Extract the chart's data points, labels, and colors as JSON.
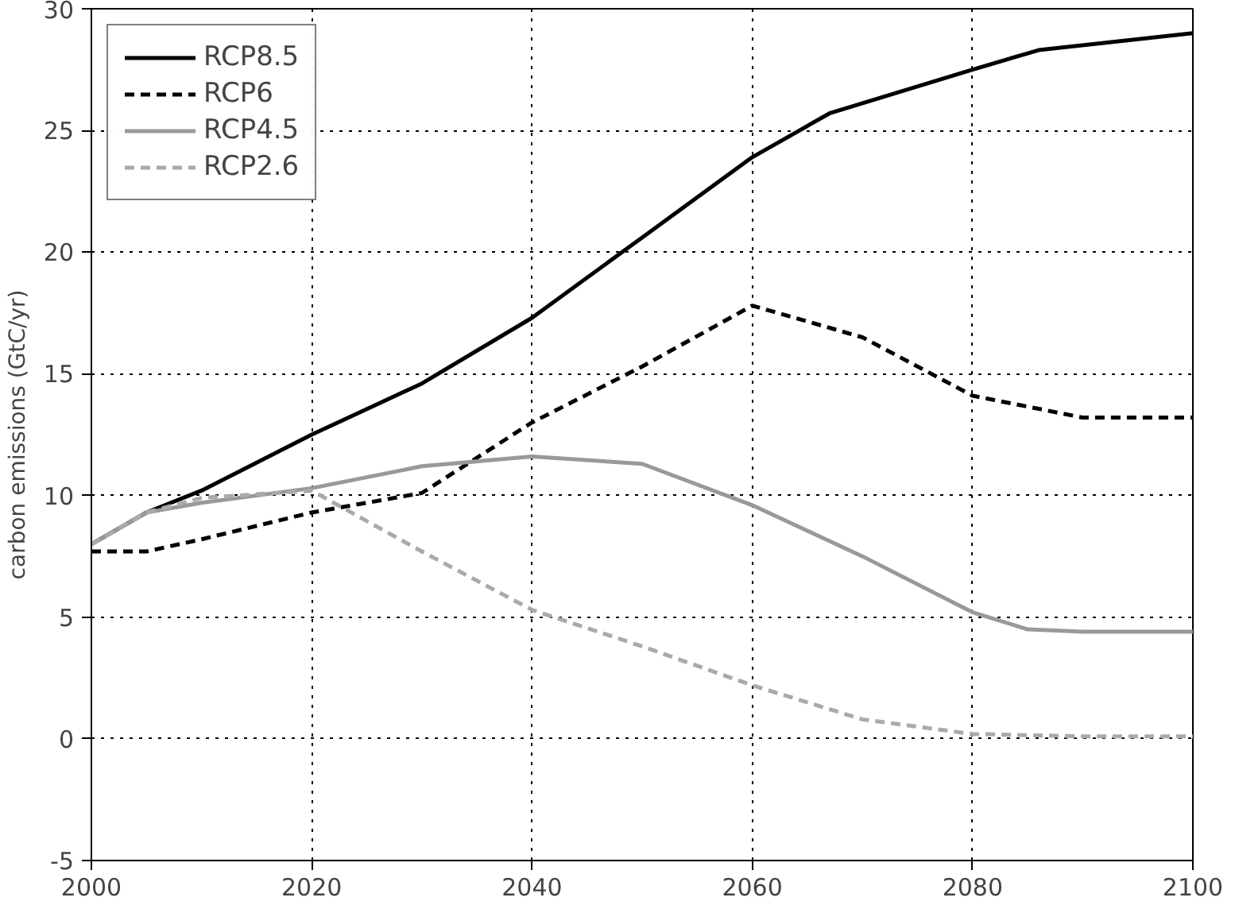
{
  "chart_data": {
    "type": "line",
    "ylabel": "carbon emissions (GtC/yr)",
    "xlim": [
      2000,
      2100
    ],
    "xticks": [
      2000,
      2020,
      2040,
      2060,
      2080,
      2100
    ],
    "ylim": [
      -5,
      30
    ],
    "yticks": [
      -5,
      0,
      5,
      10,
      15,
      20,
      25,
      30
    ],
    "grid": true,
    "legend": "top left",
    "series": [
      {
        "name": "RCP8.5",
        "color": "#000000",
        "line_style": "solid",
        "x": [
          2000,
          2005,
          2010,
          2020,
          2030,
          2040,
          2050,
          2060,
          2067,
          2080,
          2086,
          2100
        ],
        "values": [
          8.0,
          9.3,
          10.2,
          12.5,
          14.6,
          17.3,
          20.6,
          23.9,
          25.7,
          27.5,
          28.3,
          29.0
        ]
      },
      {
        "name": "RCP6",
        "color": "#000000",
        "line_style": "dashed",
        "x": [
          2000,
          2005,
          2010,
          2020,
          2030,
          2040,
          2050,
          2060,
          2070,
          2080,
          2090,
          2100
        ],
        "values": [
          7.7,
          7.7,
          8.2,
          9.3,
          10.1,
          13.0,
          15.3,
          17.8,
          16.5,
          14.1,
          13.2,
          13.2
        ]
      },
      {
        "name": "RCP4.5",
        "color": "#999999",
        "line_style": "solid",
        "x": [
          2000,
          2005,
          2010,
          2020,
          2030,
          2040,
          2050,
          2060,
          2070,
          2080,
          2085,
          2090,
          2100
        ],
        "values": [
          8.0,
          9.3,
          9.7,
          10.3,
          11.2,
          11.6,
          11.3,
          9.6,
          7.5,
          5.2,
          4.5,
          4.4,
          4.4
        ]
      },
      {
        "name": "RCP2.6",
        "color": "#aaaaaa",
        "line_style": "dashed",
        "x": [
          2000,
          2005,
          2010,
          2020,
          2030,
          2040,
          2050,
          2060,
          2070,
          2080,
          2090,
          2100
        ],
        "values": [
          8.0,
          9.3,
          9.9,
          10.2,
          7.7,
          5.3,
          3.8,
          2.2,
          0.8,
          0.2,
          0.1,
          0.1
        ]
      }
    ]
  }
}
